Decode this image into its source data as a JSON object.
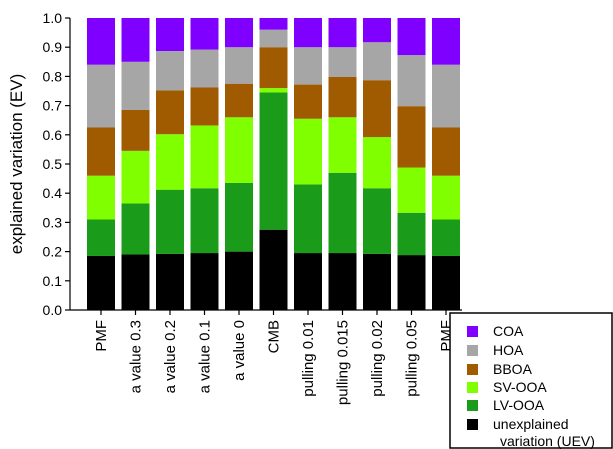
{
  "chart_data": {
    "type": "bar",
    "stacked": true,
    "ylabel": "explained variation (EV)",
    "ylim": [
      0,
      1
    ],
    "yticks": [
      "0.0",
      "0.1",
      "0.2",
      "0.3",
      "0.4",
      "0.5",
      "0.6",
      "0.7",
      "0.8",
      "0.9",
      "1.0"
    ],
    "categories": [
      "PMF",
      "a value 0.3",
      "a value 0.2",
      "a value 0.1",
      "a value 0",
      "CMB",
      "pulling 0.01",
      "pulling 0.015",
      "pulling 0.02",
      "pulling 0.05",
      "PMF"
    ],
    "series": [
      {
        "name": "unexplained\nvariation (UEV)",
        "color": "#000000",
        "values": [
          0.185,
          0.19,
          0.192,
          0.195,
          0.2,
          0.275,
          0.195,
          0.195,
          0.192,
          0.188,
          0.185
        ]
      },
      {
        "name": "LV-OOA",
        "color": "#1a9c1a",
        "values": [
          0.125,
          0.175,
          0.22,
          0.222,
          0.235,
          0.47,
          0.235,
          0.275,
          0.225,
          0.145,
          0.125
        ]
      },
      {
        "name": "SV-OOA",
        "color": "#80ff00",
        "values": [
          0.15,
          0.18,
          0.19,
          0.215,
          0.225,
          0.015,
          0.225,
          0.19,
          0.175,
          0.155,
          0.15
        ]
      },
      {
        "name": "BBOA",
        "color": "#a05a00",
        "values": [
          0.165,
          0.14,
          0.15,
          0.13,
          0.115,
          0.14,
          0.117,
          0.138,
          0.195,
          0.21,
          0.165
        ]
      },
      {
        "name": "HOA",
        "color": "#a6a6a6",
        "values": [
          0.215,
          0.165,
          0.135,
          0.13,
          0.125,
          0.06,
          0.128,
          0.102,
          0.13,
          0.175,
          0.215
        ]
      },
      {
        "name": "COA",
        "color": "#8000ff",
        "values": [
          0.16,
          0.15,
          0.113,
          0.108,
          0.1,
          0.04,
          0.1,
          0.1,
          0.083,
          0.127,
          0.16
        ]
      }
    ],
    "legend_order": [
      "COA",
      "HOA",
      "BBOA",
      "SV-OOA",
      "LV-OOA",
      "unexplained\nvariation (UEV)"
    ],
    "legend": "bottom-right"
  }
}
